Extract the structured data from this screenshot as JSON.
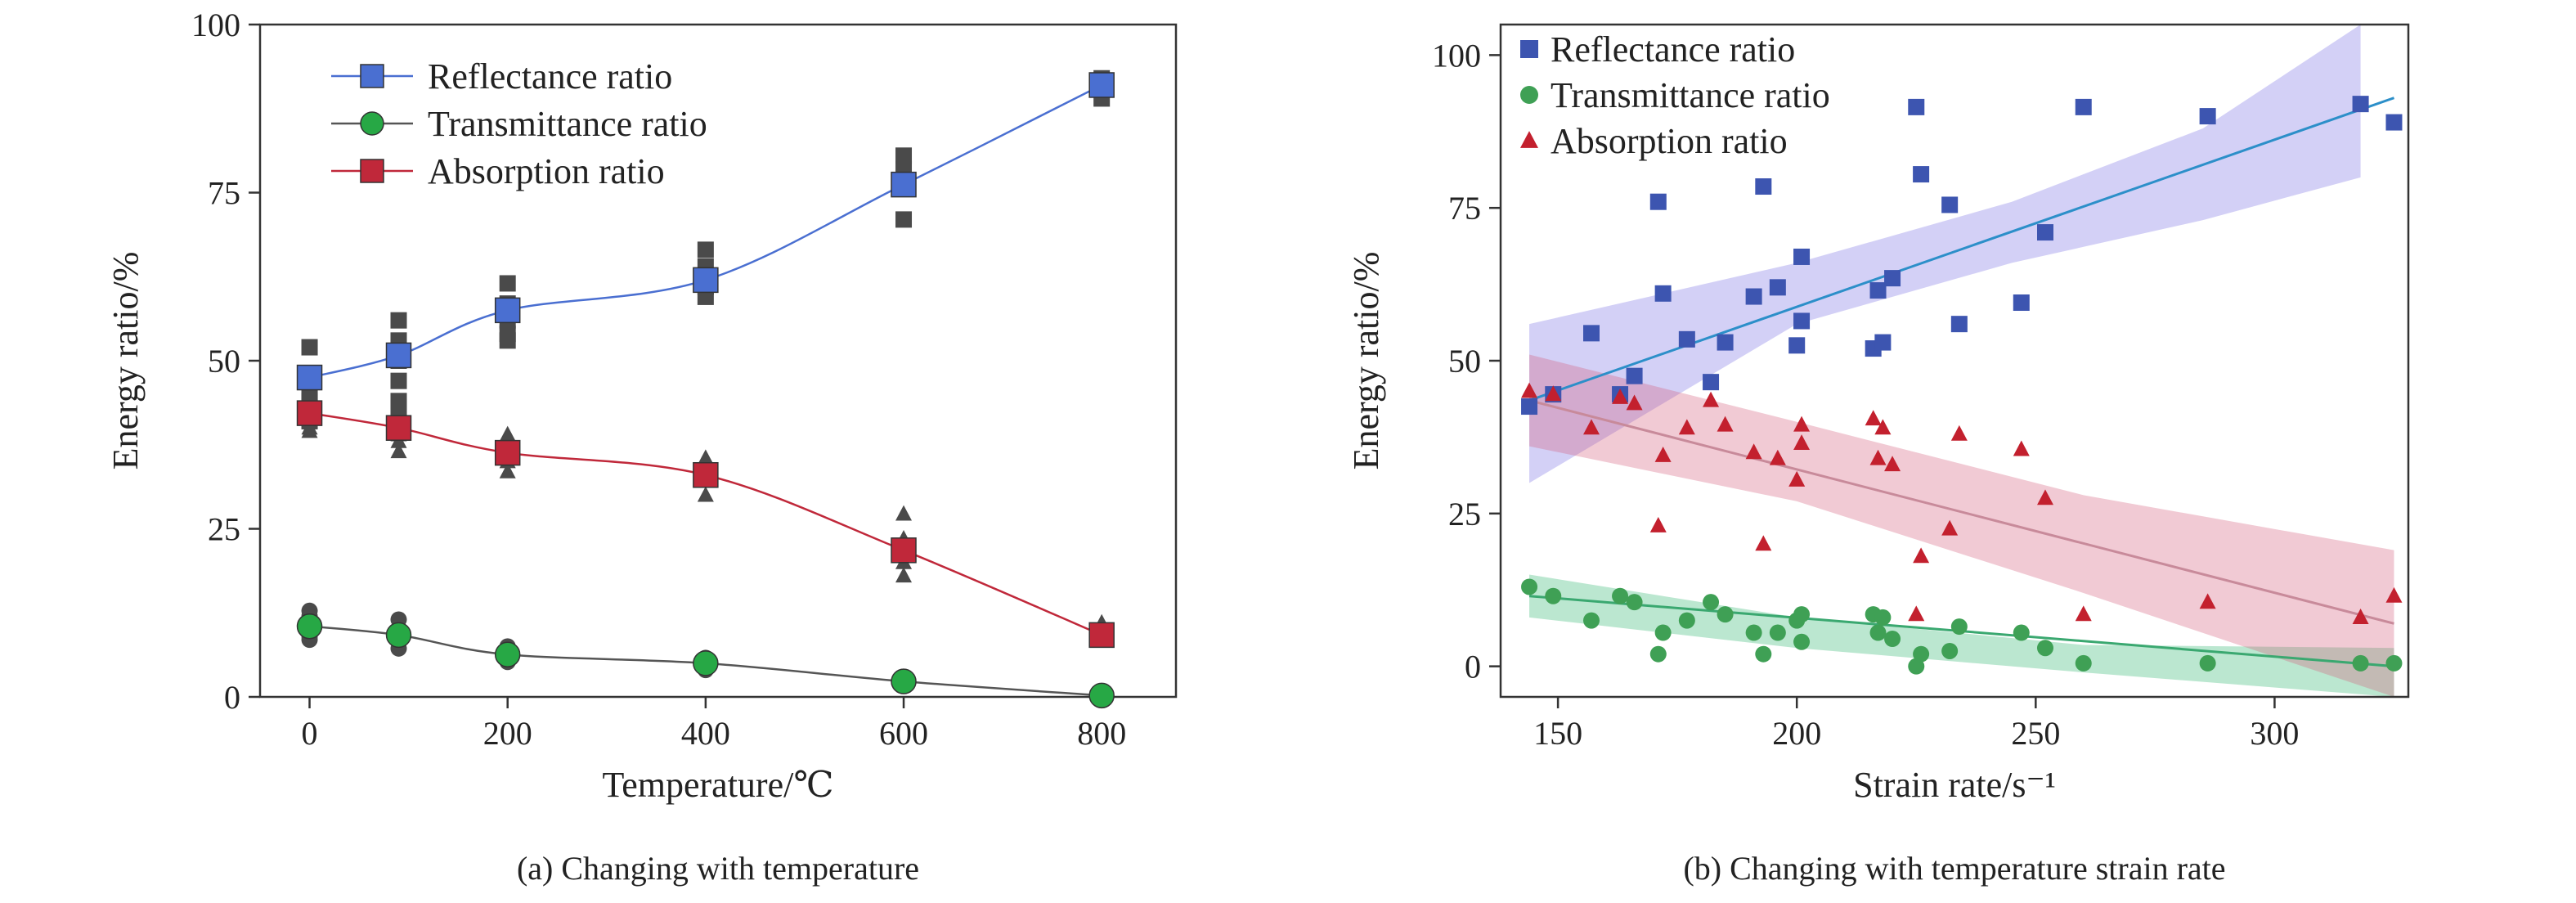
{
  "chart_data": [
    {
      "type": "line",
      "caption": "(a) Changing with temperature",
      "xlabel": "Temperature/℃",
      "ylabel": "Energy ratio/%",
      "xlim": [
        -50,
        875
      ],
      "ylim": [
        0,
        100
      ],
      "xticks": [
        0,
        200,
        400,
        600,
        800
      ],
      "yticks": [
        0,
        25,
        50,
        75,
        100
      ],
      "legend_position": "top-left",
      "series": [
        {
          "name": "Reflectance ratio",
          "color": "#4a6fd1",
          "marker": "square",
          "x": [
            0,
            90,
            200,
            400,
            600,
            800
          ],
          "y": [
            47.5,
            50.8,
            57.5,
            62,
            76.2,
            91
          ],
          "samples": [
            [
              0,
              52
            ],
            [
              0,
              45
            ],
            [
              0,
              43
            ],
            [
              0,
              41
            ],
            [
              0,
              44
            ],
            [
              90,
              56
            ],
            [
              90,
              53
            ],
            [
              90,
              50
            ],
            [
              90,
              47
            ],
            [
              90,
              44
            ],
            [
              90,
              43
            ],
            [
              200,
              61.5
            ],
            [
              200,
              58.5
            ],
            [
              200,
              56
            ],
            [
              200,
              54
            ],
            [
              200,
              53
            ],
            [
              400,
              66.5
            ],
            [
              400,
              64
            ],
            [
              400,
              61
            ],
            [
              400,
              59.5
            ],
            [
              600,
              80.5
            ],
            [
              600,
              78.5
            ],
            [
              600,
              76
            ],
            [
              600,
              71
            ],
            [
              800,
              92
            ],
            [
              800,
              90.5
            ],
            [
              800,
              89
            ]
          ]
        },
        {
          "name": "Transmittance ratio",
          "color": "#27a845",
          "marker": "circle",
          "x": [
            0,
            90,
            200,
            400,
            600,
            800
          ],
          "y": [
            10.5,
            9.2,
            6.3,
            5,
            2.3,
            0.2
          ],
          "samples": [
            [
              0,
              12.8
            ],
            [
              0,
              12
            ],
            [
              0,
              10
            ],
            [
              0,
              9
            ],
            [
              0,
              8.5
            ],
            [
              90,
              11.5
            ],
            [
              90,
              10
            ],
            [
              90,
              8.5
            ],
            [
              90,
              7.2
            ],
            [
              200,
              7.5
            ],
            [
              200,
              6.5
            ],
            [
              200,
              5.2
            ],
            [
              400,
              5.8
            ],
            [
              400,
              4.5
            ],
            [
              400,
              4
            ],
            [
              600,
              3
            ],
            [
              600,
              1.8
            ],
            [
              800,
              0.5
            ],
            [
              800,
              0
            ]
          ]
        },
        {
          "name": "Absorption ratio",
          "color": "#c0283a",
          "marker": "square",
          "x": [
            0,
            90,
            200,
            400,
            600,
            800
          ],
          "y": [
            42.2,
            40,
            36.3,
            33,
            21.8,
            9.2
          ],
          "samples": [
            [
              0,
              43
            ],
            [
              0,
              41
            ],
            [
              0,
              40
            ],
            [
              0,
              39.5
            ],
            [
              90,
              41
            ],
            [
              90,
              39
            ],
            [
              90,
              38
            ],
            [
              90,
              36.5
            ],
            [
              200,
              39
            ],
            [
              200,
              37
            ],
            [
              200,
              35
            ],
            [
              200,
              33.5
            ],
            [
              400,
              35.5
            ],
            [
              400,
              33
            ],
            [
              400,
              30
            ],
            [
              600,
              27.2
            ],
            [
              600,
              23.5
            ],
            [
              600,
              20
            ],
            [
              600,
              18
            ],
            [
              800,
              11
            ],
            [
              800,
              9.5
            ],
            [
              800,
              8.5
            ]
          ]
        }
      ]
    },
    {
      "type": "scatter",
      "caption": "(b) Changing with temperature strain rate",
      "xlabel": "Strain rate/s⁻¹",
      "ylabel": "Energy ratio/%",
      "xlim": [
        138,
        328
      ],
      "ylim": [
        -5,
        105
      ],
      "xticks": [
        150,
        200,
        250,
        300
      ],
      "yticks": [
        0,
        25,
        50,
        75,
        100
      ],
      "legend_position": "top-left",
      "series": [
        {
          "name": "Reflectance ratio",
          "color": "#3d55b0",
          "marker": "square",
          "fit": [
            [
              144,
              43.5
            ],
            [
              325,
              93
            ]
          ],
          "band": [
            [
              144,
              56
            ],
            [
              200,
              66
            ],
            [
              245,
              76
            ],
            [
              285,
              88
            ],
            [
              318,
              105
            ],
            [
              318,
              80
            ],
            [
              285,
              73
            ],
            [
              245,
              66
            ],
            [
              200,
              56
            ],
            [
              144,
              30
            ]
          ],
          "points": [
            [
              144,
              42.5
            ],
            [
              149,
              44.5
            ],
            [
              157,
              54.5
            ],
            [
              163,
              44.5
            ],
            [
              166,
              47.5
            ],
            [
              171,
              76
            ],
            [
              172,
              61
            ],
            [
              177,
              53.5
            ],
            [
              182,
              46.5
            ],
            [
              185,
              53
            ],
            [
              191,
              60.5
            ],
            [
              193,
              78.5
            ],
            [
              196,
              62
            ],
            [
              200,
              52.5
            ],
            [
              201,
              56.5
            ],
            [
              201,
              67
            ],
            [
              216,
              52
            ],
            [
              217,
              61.5
            ],
            [
              218,
              53
            ],
            [
              220,
              63.5
            ],
            [
              225,
              91.5
            ],
            [
              226,
              80.5
            ],
            [
              232,
              75.5
            ],
            [
              234,
              56
            ],
            [
              247,
              59.5
            ],
            [
              252,
              71
            ],
            [
              260,
              91.5
            ],
            [
              286,
              90
            ],
            [
              318,
              92
            ],
            [
              325,
              89
            ]
          ]
        },
        {
          "name": "Transmittance ratio",
          "color": "#3fa055",
          "marker": "circle",
          "fit": [
            [
              144,
              11.5
            ],
            [
              325,
              0
            ]
          ],
          "band": [
            [
              144,
              15
            ],
            [
              200,
              8
            ],
            [
              260,
              3.5
            ],
            [
              325,
              3
            ],
            [
              325,
              -5
            ],
            [
              260,
              -1
            ],
            [
              200,
              3
            ],
            [
              144,
              8
            ]
          ],
          "points": [
            [
              144,
              13
            ],
            [
              149,
              11.5
            ],
            [
              157,
              7.5
            ],
            [
              163,
              11.5
            ],
            [
              166,
              10.5
            ],
            [
              171,
              2
            ],
            [
              172,
              5.5
            ],
            [
              177,
              7.5
            ],
            [
              182,
              10.5
            ],
            [
              185,
              8.5
            ],
            [
              191,
              5.5
            ],
            [
              193,
              2
            ],
            [
              196,
              5.5
            ],
            [
              200,
              7.5
            ],
            [
              201,
              8.5
            ],
            [
              201,
              4
            ],
            [
              216,
              8.5
            ],
            [
              217,
              5.5
            ],
            [
              218,
              8
            ],
            [
              220,
              4.5
            ],
            [
              225,
              0
            ],
            [
              226,
              2
            ],
            [
              232,
              2.5
            ],
            [
              234,
              6.5
            ],
            [
              247,
              5.5
            ],
            [
              252,
              3
            ],
            [
              260,
              0.5
            ],
            [
              286,
              0.5
            ],
            [
              318,
              0.5
            ],
            [
              325,
              0.5
            ]
          ]
        },
        {
          "name": "Absorption ratio",
          "color": "#c3202e",
          "marker": "triangle",
          "fit": [
            [
              144,
              43.5
            ],
            [
              325,
              7
            ]
          ],
          "band": [
            [
              144,
              51
            ],
            [
              200,
              40
            ],
            [
              260,
              28
            ],
            [
              325,
              19
            ],
            [
              325,
              -5
            ],
            [
              260,
              12
            ],
            [
              200,
              27
            ],
            [
              144,
              36
            ]
          ],
          "points": [
            [
              144,
              45
            ],
            [
              149,
              44.5
            ],
            [
              157,
              39
            ],
            [
              163,
              44
            ],
            [
              166,
              43
            ],
            [
              171,
              23
            ],
            [
              172,
              34.5
            ],
            [
              177,
              39
            ],
            [
              182,
              43.5
            ],
            [
              185,
              39.5
            ],
            [
              191,
              35
            ],
            [
              193,
              20
            ],
            [
              196,
              34
            ],
            [
              200,
              30.5
            ],
            [
              201,
              36.5
            ],
            [
              201,
              39.5
            ],
            [
              216,
              40.5
            ],
            [
              217,
              34
            ],
            [
              218,
              39
            ],
            [
              220,
              33
            ],
            [
              225,
              8.5
            ],
            [
              226,
              18
            ],
            [
              232,
              22.5
            ],
            [
              234,
              38
            ],
            [
              247,
              35.5
            ],
            [
              252,
              27.5
            ],
            [
              260,
              8.5
            ],
            [
              286,
              10.5
            ],
            [
              318,
              8
            ],
            [
              325,
              11.5
            ]
          ]
        }
      ]
    }
  ]
}
